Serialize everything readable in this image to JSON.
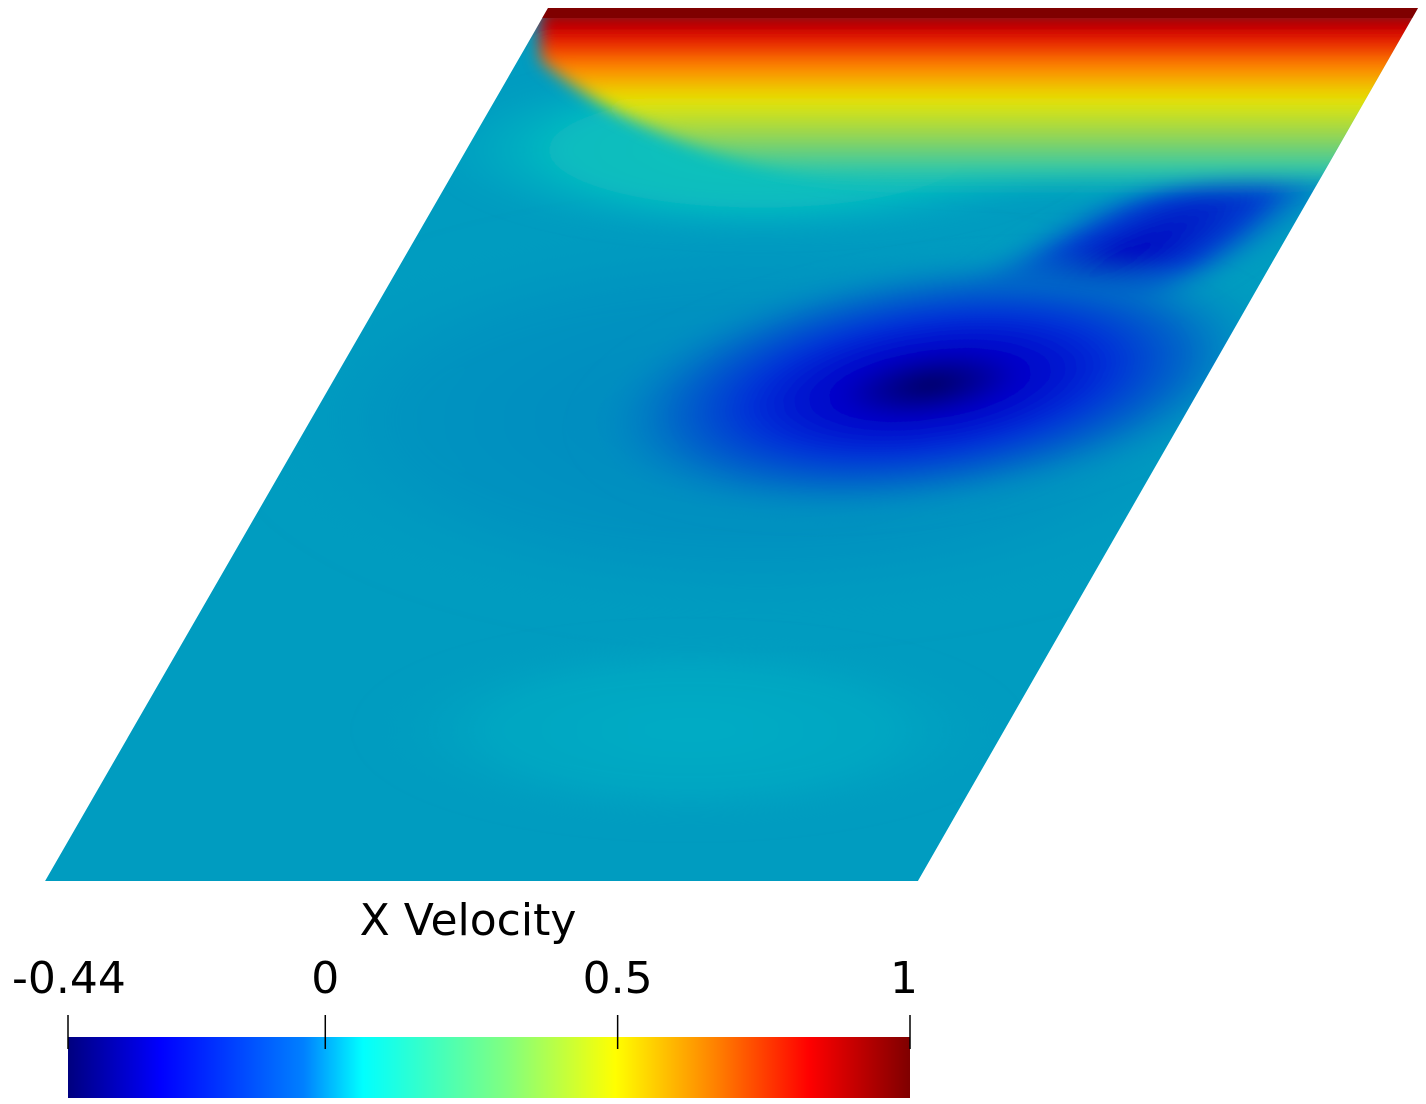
{
  "chart_data": {
    "type": "heatmap",
    "title": "",
    "variable": "X Velocity",
    "colormap": "jet",
    "range": [
      -0.44,
      1
    ],
    "colorbar": {
      "title": "X Velocity",
      "ticks": [
        {
          "value": -0.44,
          "label": "-0.44"
        },
        {
          "value": 0,
          "label": "0"
        },
        {
          "value": 0.5,
          "label": "0.5"
        },
        {
          "value": 1,
          "label": "1"
        }
      ],
      "colors": [
        "#00007f",
        "#0000ff",
        "#007fff",
        "#00ffff",
        "#7fff7f",
        "#ffff00",
        "#ff7f00",
        "#ff0000",
        "#7f0000"
      ],
      "placement": "bottom"
    },
    "domain_shape": "parallelogram",
    "field_features": [
      {
        "name": "lid",
        "location": "top edge",
        "value": 1
      },
      {
        "name": "primary vortex minimum",
        "location": "upper-right interior",
        "value": -0.44
      },
      {
        "name": "secondary vortex",
        "location": "lower-center interior",
        "value": 0.03
      }
    ]
  }
}
